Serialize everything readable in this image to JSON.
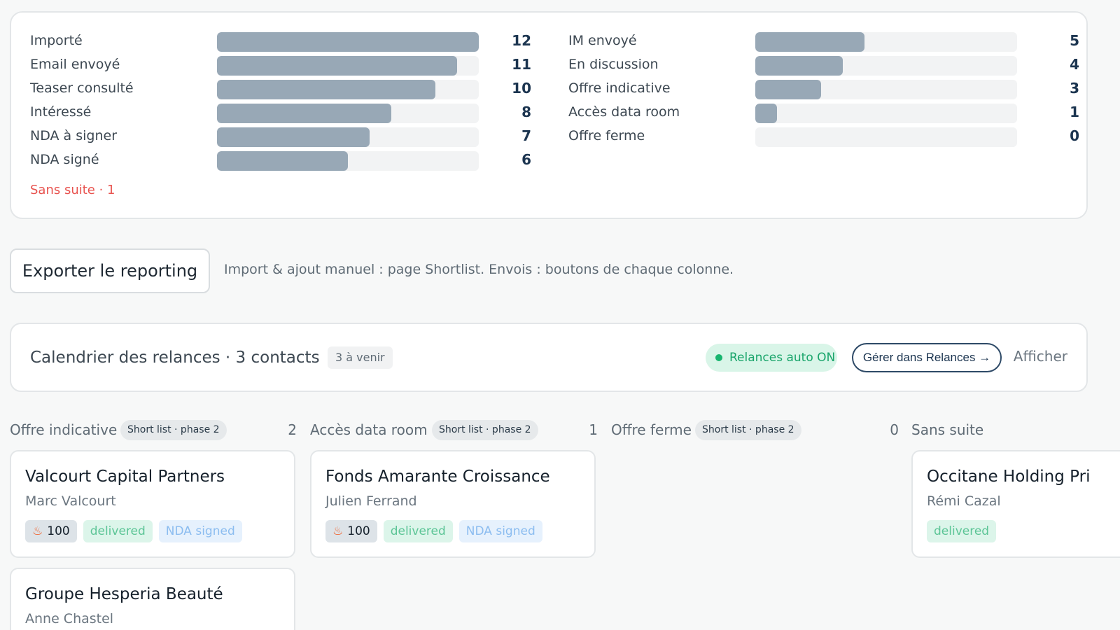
{
  "funnel": {
    "left": [
      {
        "label": "Importé",
        "count": "12",
        "level": 1.0
      },
      {
        "label": "Email envoyé",
        "count": "11",
        "level": 0.917
      },
      {
        "label": "Teaser consulté",
        "count": "10",
        "level": 0.833
      },
      {
        "label": "Intéressé",
        "count": "8",
        "level": 0.667
      },
      {
        "label": "NDA à signer",
        "count": "7",
        "level": 0.583
      },
      {
        "label": "NDA signé",
        "count": "6",
        "level": 0.5
      }
    ],
    "right": [
      {
        "label": "IM envoyé",
        "count": "5",
        "level": 0.417
      },
      {
        "label": "En discussion",
        "count": "4",
        "level": 0.333
      },
      {
        "label": "Offre indicative",
        "count": "3",
        "level": 0.25
      },
      {
        "label": "Accès data room",
        "count": "1",
        "level": 0.083
      },
      {
        "label": "Offre ferme",
        "count": "0",
        "level": 0
      }
    ],
    "sans_suite": "Sans suite · 1"
  },
  "export": {
    "button_label": "Exporter le reporting",
    "hint": "Import & ajout manuel : page Shortlist. Envois : boutons de chaque colonne."
  },
  "calendar": {
    "title": "Calendrier des relances · 3 contacts",
    "upcoming": "3 à venir",
    "auto_status": "Relances auto ON",
    "manage_label": "Gérer dans Relances →",
    "show_label": "Afficher"
  },
  "kanban": {
    "columns": [
      {
        "title": "Offre indicative",
        "phase": "Short list · phase 2",
        "count": "2",
        "cards": [
          {
            "name": "Valcourt Capital Partners",
            "contact": "Marc Valcourt",
            "score": "100",
            "status": "delivered",
            "nda": "NDA signed"
          },
          {
            "name": "Groupe Hesperia Beauté",
            "contact": "Anne Chastel"
          }
        ]
      },
      {
        "title": "Accès data room",
        "phase": "Short list · phase 2",
        "count": "1",
        "cards": [
          {
            "name": "Fonds Amarante Croissance",
            "contact": "Julien Ferrand",
            "score": "100",
            "status": "delivered",
            "nda": "NDA signed"
          }
        ]
      },
      {
        "title": "Offre ferme",
        "phase": "Short list · phase 2",
        "count": "0",
        "cards": []
      },
      {
        "title": "Sans suite",
        "cards": [
          {
            "name": "Occitane Holding Pri",
            "contact": "Rémi Cazal",
            "status": "delivered"
          }
        ]
      }
    ]
  },
  "icons": {
    "score": "flame-icon",
    "auto": "status-dot-icon"
  },
  "colors": {
    "accent_navy": "#1c3550",
    "bar": "#98a8b6",
    "danger": "#e8534f",
    "success": "#18b56f"
  }
}
